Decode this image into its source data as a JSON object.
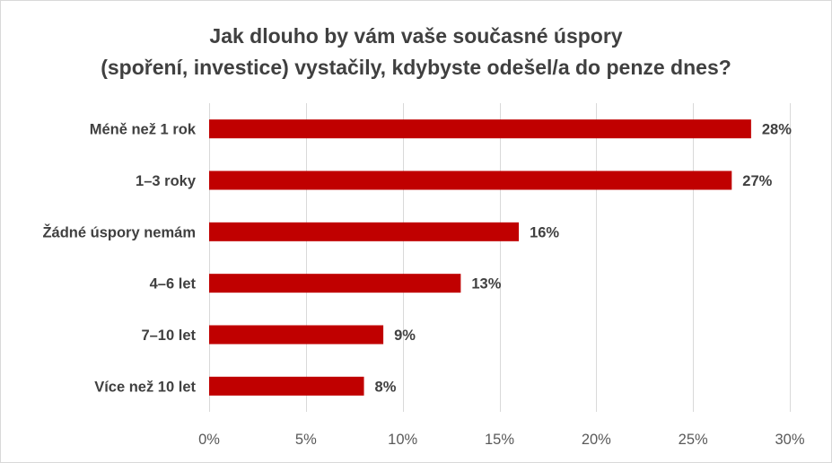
{
  "chart_data": {
    "type": "bar",
    "orientation": "horizontal",
    "title_lines": [
      "Jak dlouho by vám vaše současné úspory",
      "(spoření, investice) vystačily, kdybyste odešel/a do penze dnes?"
    ],
    "categories": [
      "Méně než 1 rok",
      "1–3 roky",
      "Žádné úspory nemám",
      "4–6 let",
      "7–10 let",
      "Více než 10 let"
    ],
    "values": [
      28,
      27,
      16,
      13,
      9,
      8
    ],
    "value_labels": [
      "28%",
      "27%",
      "16%",
      "13%",
      "9%",
      "8%"
    ],
    "xlim": [
      0,
      30
    ],
    "ticks": [
      0,
      5,
      10,
      15,
      20,
      25,
      30
    ],
    "tick_labels": [
      "0%",
      "5%",
      "10%",
      "15%",
      "20%",
      "25%",
      "30%"
    ],
    "grid": "vertical",
    "bar_color": "#c00000",
    "grid_color": "#d9d9d9"
  }
}
